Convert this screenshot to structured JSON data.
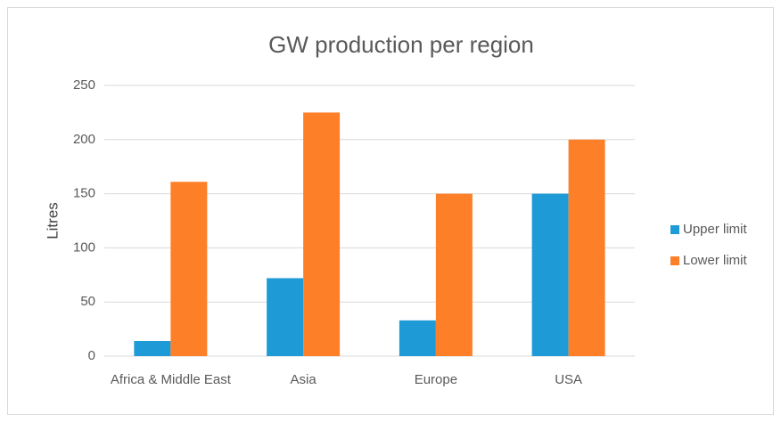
{
  "chart_data": {
    "type": "bar",
    "title": "GW production per region",
    "y_label": "Litres",
    "categories": [
      "Africa & Middle East",
      "Asia",
      "Europe",
      "USA"
    ],
    "series": [
      {
        "name": "Upper limit",
        "color": "#1e9bd7",
        "values": [
          14,
          72,
          33,
          150
        ]
      },
      {
        "name": "Lower limit",
        "color": "#fd7f28",
        "values": [
          161,
          225,
          150,
          200
        ]
      }
    ],
    "ylim": [
      0,
      250
    ],
    "yticks": [
      0,
      50,
      100,
      150,
      200,
      250
    ],
    "grid": true,
    "legend": "right"
  }
}
